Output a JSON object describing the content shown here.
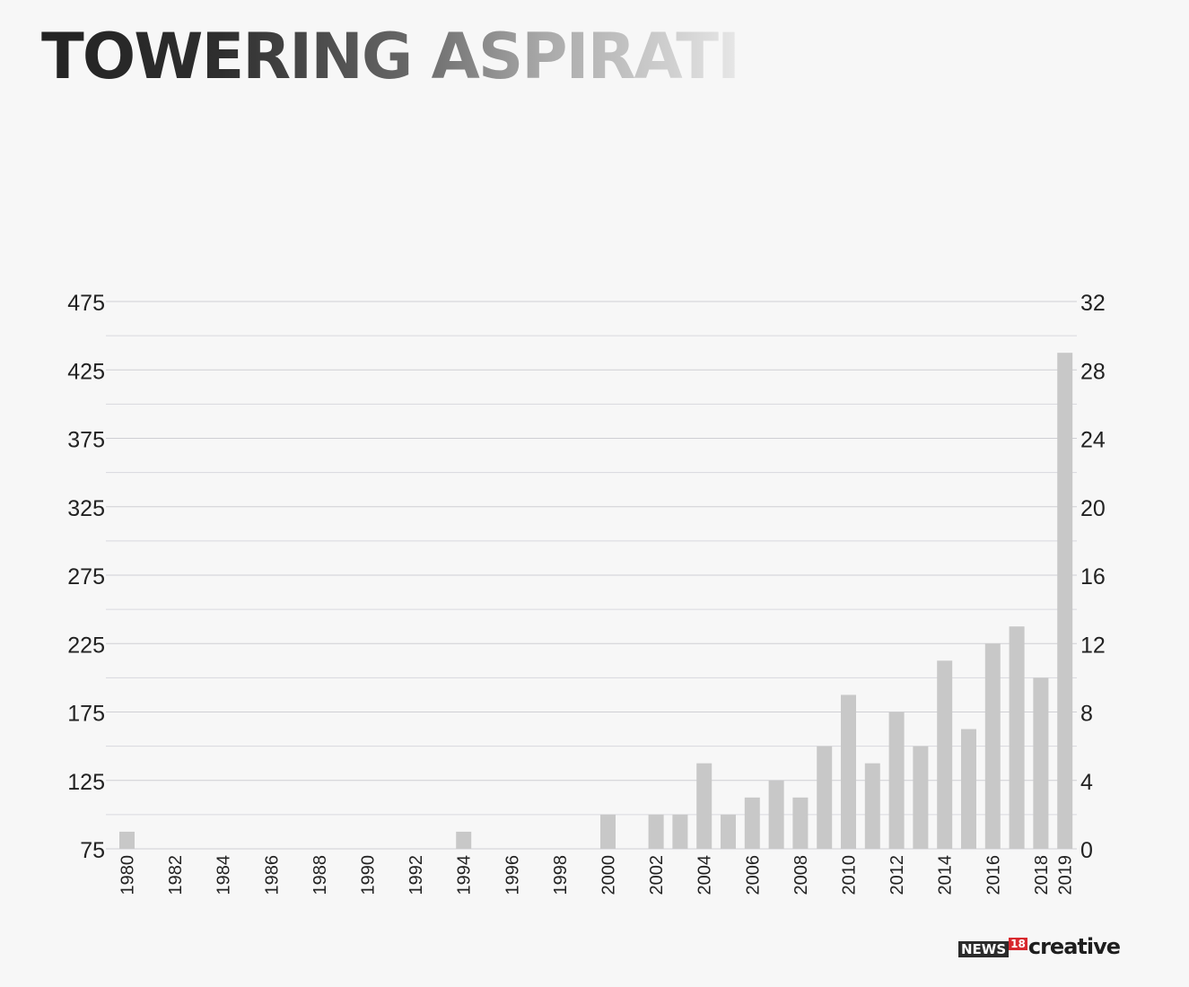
{
  "title": "TOWERING ASPIRATI",
  "logo": {
    "news": "NEWS",
    "num": "18",
    "creative": "creative"
  },
  "chart_data": {
    "type": "bar",
    "x": [
      1980,
      1981,
      1982,
      1983,
      1984,
      1985,
      1986,
      1987,
      1988,
      1989,
      1990,
      1991,
      1992,
      1993,
      1994,
      1995,
      1996,
      1997,
      1998,
      1999,
      2000,
      2001,
      2002,
      2003,
      2004,
      2005,
      2006,
      2007,
      2008,
      2009,
      2010,
      2011,
      2012,
      2013,
      2014,
      2015,
      2016,
      2017,
      2018,
      2019
    ],
    "xticks": [
      "1980",
      "1982",
      "1984",
      "1986",
      "1988",
      "1990",
      "1992",
      "1994",
      "1996",
      "1998",
      "2000",
      "2002",
      "2004",
      "2006",
      "2008",
      "2010",
      "2012",
      "2014",
      "2016",
      "2018",
      "2019"
    ],
    "values": [
      1,
      0,
      0,
      0,
      0,
      0,
      0,
      0,
      0,
      0,
      0,
      0,
      0,
      0,
      1,
      0,
      0,
      0,
      0,
      0,
      2,
      0,
      2,
      2,
      5,
      2,
      3,
      4,
      3,
      6,
      9,
      5,
      8,
      6,
      11,
      7,
      12,
      13,
      10,
      29
    ],
    "left_axis": {
      "ticks": [
        "75",
        "125",
        "175",
        "225",
        "275",
        "325",
        "375",
        "425",
        "475"
      ],
      "range": [
        75,
        475
      ]
    },
    "right_axis": {
      "ticks": [
        "0",
        "4",
        "8",
        "12",
        "16",
        "20",
        "24",
        "28",
        "32"
      ],
      "range": [
        0,
        32
      ]
    },
    "bar_color": "#c8c8c8",
    "grid": true
  }
}
